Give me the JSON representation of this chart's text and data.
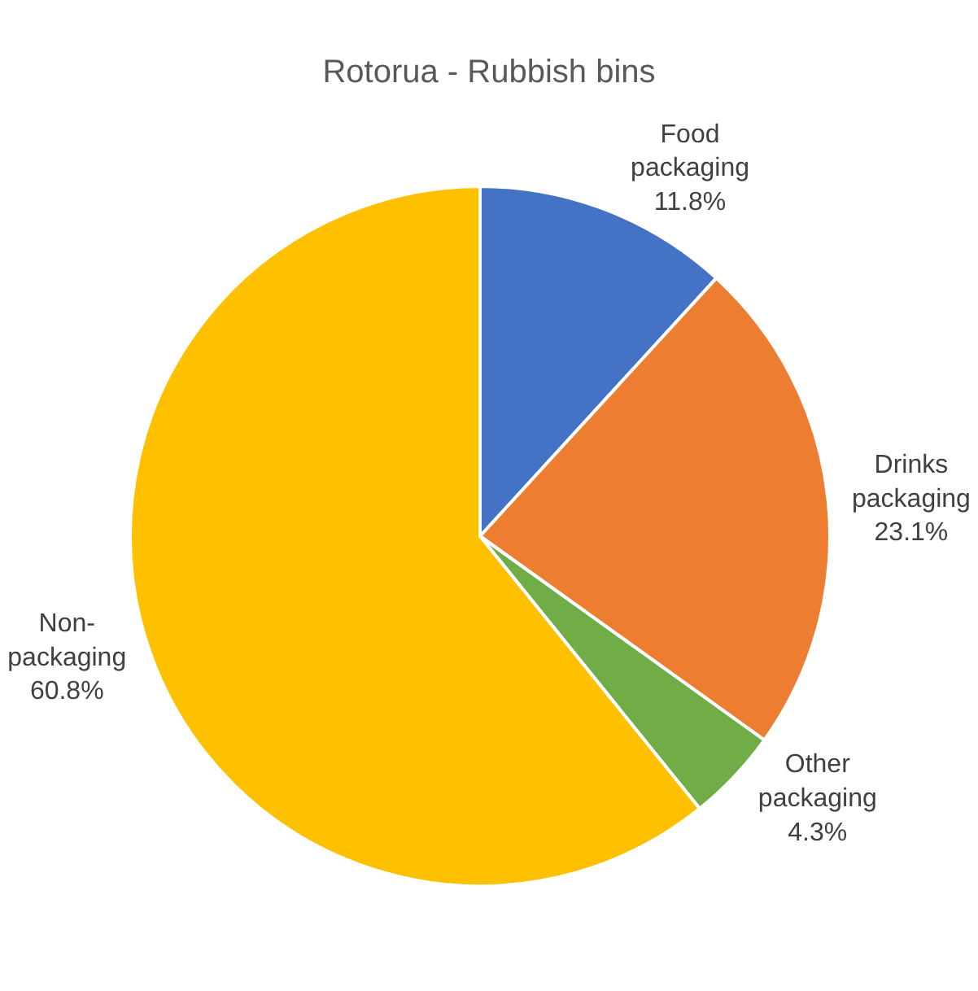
{
  "chart_data": {
    "type": "pie",
    "title": "Rotorua - Rubbish bins",
    "categories": [
      "Food packaging",
      "Drinks packaging",
      "Other packaging",
      "Non-packaging"
    ],
    "values": [
      11.8,
      23.1,
      4.3,
      60.8
    ],
    "colors": [
      "#4472c4",
      "#ed7d31",
      "#70ad47",
      "#ffc000"
    ],
    "value_labels": [
      "11.8%",
      "23.1%",
      "4.3%",
      "60.8%"
    ],
    "legend": false
  }
}
